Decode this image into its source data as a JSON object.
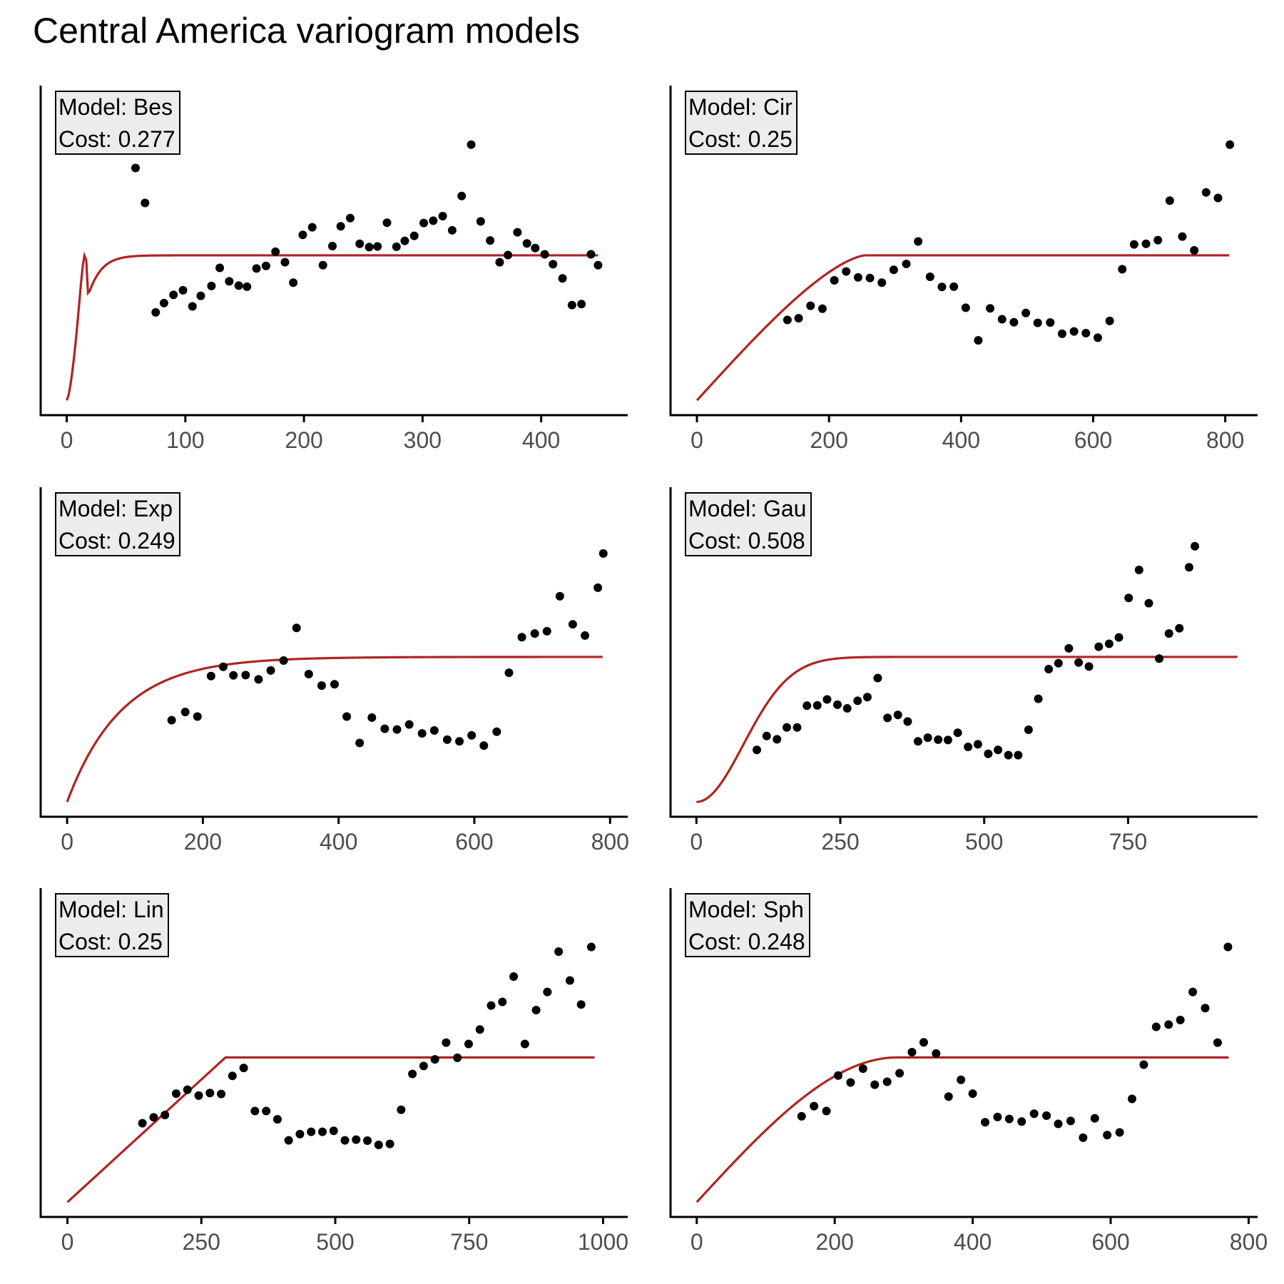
{
  "chart_data": {
    "title": "Central America variogram models",
    "panels": [
      {
        "type": "scatter",
        "model_label": "Model: Bes",
        "cost_label": "Cost: 0.277",
        "xlim": [
          -22,
          473
        ],
        "ylim": [
          0,
          1
        ],
        "xticks": [
          0,
          100,
          200,
          300,
          400
        ],
        "xtick_labels": [
          "0",
          "100",
          "200",
          "300",
          "400"
        ],
        "points": [
          [
            58,
            0.75
          ],
          [
            66,
            0.644
          ],
          [
            75,
            0.312
          ],
          [
            82,
            0.34
          ],
          [
            90,
            0.365
          ],
          [
            98,
            0.379
          ],
          [
            106,
            0.33
          ],
          [
            113,
            0.362
          ],
          [
            122,
            0.392
          ],
          [
            129,
            0.447
          ],
          [
            137,
            0.406
          ],
          [
            145,
            0.393
          ],
          [
            152,
            0.39
          ],
          [
            160,
            0.445
          ],
          [
            168,
            0.453
          ],
          [
            176,
            0.496
          ],
          [
            184,
            0.464
          ],
          [
            191,
            0.402
          ],
          [
            199,
            0.547
          ],
          [
            207,
            0.57
          ],
          [
            216,
            0.455
          ],
          [
            224,
            0.513
          ],
          [
            231,
            0.573
          ],
          [
            239,
            0.598
          ],
          [
            247,
            0.52
          ],
          [
            255,
            0.51
          ],
          [
            262,
            0.512
          ],
          [
            270,
            0.584
          ],
          [
            278,
            0.511
          ],
          [
            285,
            0.529
          ],
          [
            293,
            0.544
          ],
          [
            301,
            0.583
          ],
          [
            309,
            0.59
          ],
          [
            317,
            0.604
          ],
          [
            325,
            0.561
          ],
          [
            333,
            0.665
          ],
          [
            341,
            0.821
          ],
          [
            349,
            0.588
          ],
          [
            357,
            0.53
          ],
          [
            365,
            0.464
          ],
          [
            372,
            0.486
          ],
          [
            380,
            0.555
          ],
          [
            388,
            0.521
          ],
          [
            395,
            0.507
          ],
          [
            403,
            0.488
          ],
          [
            410,
            0.458
          ],
          [
            418,
            0.415
          ],
          [
            426,
            0.334
          ],
          [
            434,
            0.337
          ],
          [
            442,
            0.488
          ],
          [
            448,
            0.455
          ]
        ],
        "curve": {
          "model": "bessel",
          "nugget": 0.045,
          "sill": 0.44,
          "range": 9,
          "xmax": 448
        }
      },
      {
        "type": "scatter",
        "model_label": "Model: Cir",
        "cost_label": "Cost: 0.25",
        "xlim": [
          -40,
          849
        ],
        "ylim": [
          0,
          1
        ],
        "xticks": [
          0,
          200,
          400,
          600,
          800
        ],
        "xtick_labels": [
          "0",
          "200",
          "400",
          "600",
          "800"
        ],
        "points": [
          [
            137,
            0.289
          ],
          [
            154,
            0.294
          ],
          [
            172,
            0.332
          ],
          [
            190,
            0.323
          ],
          [
            208,
            0.409
          ],
          [
            226,
            0.436
          ],
          [
            244,
            0.418
          ],
          [
            262,
            0.416
          ],
          [
            280,
            0.402
          ],
          [
            298,
            0.441
          ],
          [
            317,
            0.459
          ],
          [
            335,
            0.527
          ],
          [
            353,
            0.42
          ],
          [
            371,
            0.389
          ],
          [
            389,
            0.39
          ],
          [
            407,
            0.326
          ],
          [
            426,
            0.227
          ],
          [
            444,
            0.324
          ],
          [
            462,
            0.291
          ],
          [
            480,
            0.282
          ],
          [
            498,
            0.31
          ],
          [
            516,
            0.28
          ],
          [
            535,
            0.281
          ],
          [
            553,
            0.247
          ],
          [
            571,
            0.254
          ],
          [
            589,
            0.249
          ],
          [
            607,
            0.235
          ],
          [
            625,
            0.286
          ],
          [
            644,
            0.443
          ],
          [
            662,
            0.518
          ],
          [
            680,
            0.52
          ],
          [
            698,
            0.531
          ],
          [
            716,
            0.651
          ],
          [
            735,
            0.542
          ],
          [
            753,
            0.5
          ],
          [
            771,
            0.676
          ],
          [
            789,
            0.659
          ],
          [
            807,
            0.821
          ]
        ],
        "curve": {
          "model": "circular",
          "nugget": 0.045,
          "sill": 0.44,
          "range": 255,
          "xmax": 806
        }
      },
      {
        "type": "scatter",
        "model_label": "Model: Exp",
        "cost_label": "Cost: 0.249",
        "xlim": [
          -39,
          826
        ],
        "ylim": [
          0,
          1
        ],
        "xticks": [
          0,
          200,
          400,
          600,
          800
        ],
        "xtick_labels": [
          "0",
          "200",
          "400",
          "600",
          "800"
        ],
        "points": [
          [
            154,
            0.293
          ],
          [
            174,
            0.318
          ],
          [
            192,
            0.304
          ],
          [
            212,
            0.427
          ],
          [
            230,
            0.455
          ],
          [
            245,
            0.429
          ],
          [
            263,
            0.43
          ],
          [
            282,
            0.417
          ],
          [
            300,
            0.444
          ],
          [
            319,
            0.474
          ],
          [
            338,
            0.573
          ],
          [
            356,
            0.433
          ],
          [
            375,
            0.398
          ],
          [
            394,
            0.402
          ],
          [
            412,
            0.304
          ],
          [
            431,
            0.224
          ],
          [
            449,
            0.301
          ],
          [
            468,
            0.267
          ],
          [
            486,
            0.265
          ],
          [
            504,
            0.28
          ],
          [
            523,
            0.253
          ],
          [
            541,
            0.262
          ],
          [
            560,
            0.234
          ],
          [
            578,
            0.229
          ],
          [
            596,
            0.247
          ],
          [
            614,
            0.216
          ],
          [
            633,
            0.258
          ],
          [
            651,
            0.437
          ],
          [
            670,
            0.545
          ],
          [
            689,
            0.556
          ],
          [
            707,
            0.563
          ],
          [
            726,
            0.669
          ],
          [
            745,
            0.584
          ],
          [
            763,
            0.55
          ],
          [
            782,
            0.695
          ],
          [
            790,
            0.799
          ]
        ],
        "curve": {
          "model": "exponential",
          "nugget": 0.045,
          "sill": 0.44,
          "range": 80,
          "xmax": 789
        }
      },
      {
        "type": "scatter",
        "model_label": "Model: Gau",
        "cost_label": "Cost: 0.508",
        "xlim": [
          -45,
          975
        ],
        "ylim": [
          0,
          1
        ],
        "xticks": [
          0,
          250,
          500,
          750
        ],
        "xtick_labels": [
          "0",
          "250",
          "500",
          "750"
        ],
        "points": [
          [
            105,
            0.203
          ],
          [
            122,
            0.245
          ],
          [
            140,
            0.235
          ],
          [
            157,
            0.271
          ],
          [
            175,
            0.271
          ],
          [
            192,
            0.337
          ],
          [
            210,
            0.338
          ],
          [
            227,
            0.356
          ],
          [
            245,
            0.34
          ],
          [
            262,
            0.329
          ],
          [
            280,
            0.352
          ],
          [
            297,
            0.363
          ],
          [
            315,
            0.421
          ],
          [
            332,
            0.3
          ],
          [
            350,
            0.309
          ],
          [
            367,
            0.289
          ],
          [
            385,
            0.229
          ],
          [
            402,
            0.24
          ],
          [
            420,
            0.234
          ],
          [
            437,
            0.233
          ],
          [
            454,
            0.255
          ],
          [
            472,
            0.212
          ],
          [
            489,
            0.22
          ],
          [
            507,
            0.191
          ],
          [
            524,
            0.203
          ],
          [
            542,
            0.187
          ],
          [
            559,
            0.187
          ],
          [
            577,
            0.264
          ],
          [
            594,
            0.358
          ],
          [
            612,
            0.448
          ],
          [
            629,
            0.466
          ],
          [
            647,
            0.511
          ],
          [
            664,
            0.468
          ],
          [
            682,
            0.456
          ],
          [
            699,
            0.516
          ],
          [
            717,
            0.525
          ],
          [
            734,
            0.544
          ],
          [
            751,
            0.664
          ],
          [
            769,
            0.749
          ],
          [
            786,
            0.648
          ],
          [
            804,
            0.48
          ],
          [
            821,
            0.556
          ],
          [
            839,
            0.572
          ],
          [
            856,
            0.757
          ],
          [
            866,
            0.821
          ]
        ],
        "curve": {
          "model": "gaussian",
          "nugget": 0.045,
          "sill": 0.44,
          "range": 115,
          "xmax": 940
        }
      },
      {
        "type": "scatter",
        "model_label": "Model: Lin",
        "cost_label": "Cost: 0.25",
        "xlim": [
          -50,
          1046
        ],
        "ylim": [
          0,
          1
        ],
        "xticks": [
          0,
          250,
          500,
          750,
          1000
        ],
        "xtick_labels": [
          "0",
          "250",
          "500",
          "750",
          "1000"
        ],
        "points": [
          [
            140,
            0.285
          ],
          [
            161,
            0.303
          ],
          [
            182,
            0.31
          ],
          [
            203,
            0.375
          ],
          [
            224,
            0.387
          ],
          [
            245,
            0.369
          ],
          [
            266,
            0.377
          ],
          [
            287,
            0.374
          ],
          [
            308,
            0.429
          ],
          [
            329,
            0.453
          ],
          [
            350,
            0.322
          ],
          [
            371,
            0.322
          ],
          [
            392,
            0.297
          ],
          [
            413,
            0.233
          ],
          [
            434,
            0.252
          ],
          [
            455,
            0.259
          ],
          [
            476,
            0.259
          ],
          [
            497,
            0.262
          ],
          [
            518,
            0.233
          ],
          [
            539,
            0.235
          ],
          [
            560,
            0.232
          ],
          [
            581,
            0.219
          ],
          [
            602,
            0.222
          ],
          [
            623,
            0.326
          ],
          [
            644,
            0.435
          ],
          [
            665,
            0.459
          ],
          [
            686,
            0.479
          ],
          [
            707,
            0.53
          ],
          [
            728,
            0.484
          ],
          [
            749,
            0.526
          ],
          [
            770,
            0.57
          ],
          [
            791,
            0.643
          ],
          [
            812,
            0.654
          ],
          [
            833,
            0.731
          ],
          [
            854,
            0.526
          ],
          [
            875,
            0.629
          ],
          [
            896,
            0.684
          ],
          [
            917,
            0.807
          ],
          [
            938,
            0.719
          ],
          [
            959,
            0.646
          ],
          [
            978,
            0.821
          ]
        ],
        "curve": {
          "model": "linear",
          "nugget": 0.045,
          "sill": 0.44,
          "range": 295,
          "xmax": 984
        }
      },
      {
        "type": "scatter",
        "model_label": "Model: Sph",
        "cost_label": "Cost: 0.248",
        "xlim": [
          -38,
          813
        ],
        "ylim": [
          0,
          1
        ],
        "xticks": [
          0,
          200,
          400,
          600,
          800
        ],
        "xtick_labels": [
          "0",
          "200",
          "400",
          "600",
          "800"
        ],
        "points": [
          [
            152,
            0.306
          ],
          [
            170,
            0.337
          ],
          [
            188,
            0.322
          ],
          [
            205,
            0.43
          ],
          [
            223,
            0.409
          ],
          [
            241,
            0.451
          ],
          [
            258,
            0.402
          ],
          [
            276,
            0.411
          ],
          [
            294,
            0.437
          ],
          [
            312,
            0.501
          ],
          [
            329,
            0.531
          ],
          [
            347,
            0.497
          ],
          [
            365,
            0.366
          ],
          [
            383,
            0.417
          ],
          [
            400,
            0.375
          ],
          [
            418,
            0.288
          ],
          [
            436,
            0.304
          ],
          [
            453,
            0.298
          ],
          [
            471,
            0.29
          ],
          [
            489,
            0.314
          ],
          [
            507,
            0.308
          ],
          [
            524,
            0.283
          ],
          [
            542,
            0.292
          ],
          [
            560,
            0.241
          ],
          [
            577,
            0.3
          ],
          [
            595,
            0.249
          ],
          [
            613,
            0.257
          ],
          [
            631,
            0.359
          ],
          [
            648,
            0.463
          ],
          [
            666,
            0.578
          ],
          [
            684,
            0.585
          ],
          [
            701,
            0.599
          ],
          [
            719,
            0.684
          ],
          [
            737,
            0.635
          ],
          [
            755,
            0.53
          ],
          [
            770,
            0.821
          ]
        ],
        "curve": {
          "model": "spherical",
          "nugget": 0.045,
          "sill": 0.44,
          "range": 290,
          "xmax": 771
        }
      }
    ]
  },
  "style": {
    "curve_color": "#b22222",
    "point_color": "#000000",
    "axis_color": "#000000",
    "tick_label_color": "#4d4d4d",
    "label_box_fill": "#ececec"
  }
}
